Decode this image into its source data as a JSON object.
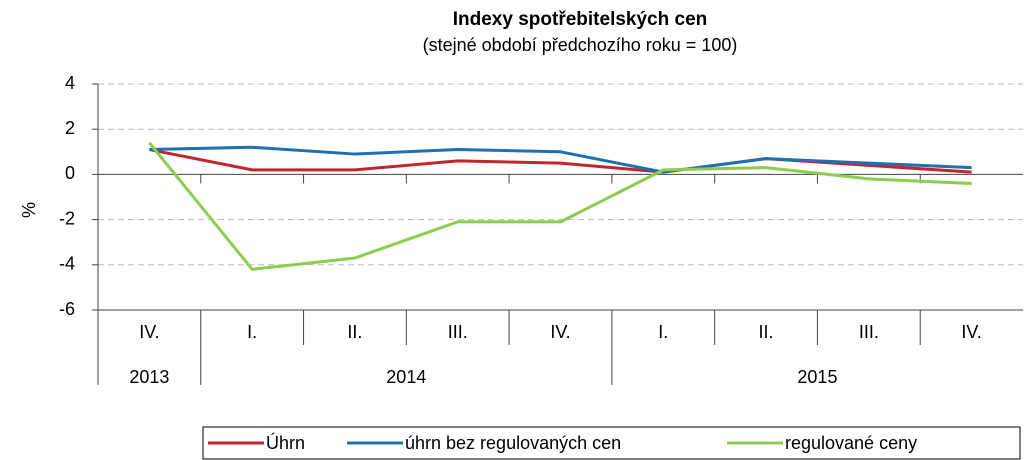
{
  "chart_data": {
    "type": "line",
    "title": "Indexy spotřebitelských  cen",
    "subtitle": "(stejné období předchozího roku = 100)",
    "y_label": "%",
    "categories": [
      "IV.",
      "I.",
      "II.",
      "III.",
      "IV.",
      "I.",
      "II.",
      "III.",
      "IV."
    ],
    "years": [
      "2013",
      "2014",
      "2014",
      "2014",
      "2014",
      "2015",
      "2015",
      "2015",
      "2015"
    ],
    "series": [
      {
        "name": "Úhrn",
        "color": "#c0272d",
        "values": [
          1.1,
          0.2,
          0.2,
          0.6,
          0.5,
          0.1,
          0.7,
          0.4,
          0.1
        ]
      },
      {
        "name": "úhrn bez regulovaných cen",
        "color": "#1f6fb5",
        "values": [
          1.1,
          1.2,
          0.9,
          1.1,
          1.0,
          0.1,
          0.7,
          0.5,
          0.3
        ]
      },
      {
        "name": "regulované ceny",
        "color": "#8dcc4f",
        "values": [
          1.4,
          -4.2,
          -3.7,
          -2.1,
          -2.1,
          0.2,
          0.3,
          -0.2,
          -0.4
        ]
      }
    ],
    "ylim": [
      -6,
      4
    ],
    "yticks": [
      -6,
      -4,
      -2,
      0,
      2,
      4
    ],
    "grid": true
  }
}
